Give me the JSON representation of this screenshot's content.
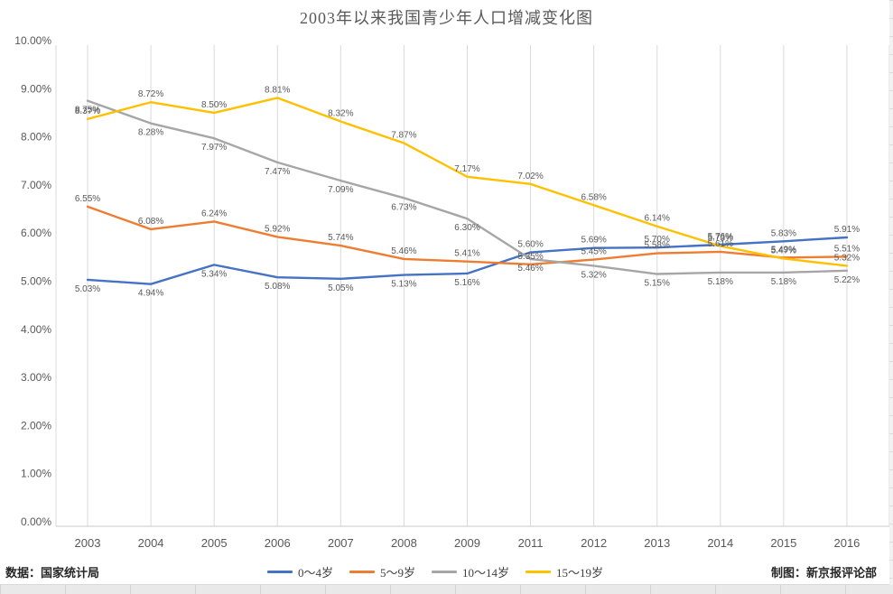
{
  "title": "2003年以来我国青少年人口增减变化图",
  "footer": {
    "source_label": "数据：国家统计局",
    "credit_label": "制图：新京报评论部"
  },
  "chart_data": {
    "type": "line",
    "title": "2003年以来我国青少年人口增减变化图",
    "categories": [
      "2003",
      "2004",
      "2005",
      "2006",
      "2007",
      "2008",
      "2009",
      "2011",
      "2012",
      "2013",
      "2014",
      "2015",
      "2016"
    ],
    "series": [
      {
        "name": "0～4岁",
        "color": "#4472c4",
        "values": [
          5.03,
          4.94,
          5.34,
          5.08,
          5.05,
          5.13,
          5.16,
          5.6,
          5.69,
          5.7,
          5.76,
          5.83,
          5.91
        ]
      },
      {
        "name": "5～9岁",
        "color": "#ed7d31",
        "values": [
          6.55,
          6.08,
          6.24,
          5.92,
          5.74,
          5.46,
          5.41,
          5.35,
          5.45,
          5.58,
          5.61,
          5.49,
          5.51
        ]
      },
      {
        "name": "10～14岁",
        "color": "#a6a6a6",
        "values": [
          8.75,
          8.28,
          7.97,
          7.47,
          7.09,
          6.73,
          6.3,
          5.46,
          5.32,
          5.15,
          5.18,
          5.18,
          5.22
        ]
      },
      {
        "name": "15～19岁",
        "color": "#ffc000",
        "values": [
          8.37,
          8.72,
          8.5,
          8.81,
          8.32,
          7.87,
          7.17,
          7.02,
          6.58,
          6.14,
          5.73,
          5.47,
          5.32
        ]
      }
    ],
    "xlabel": "",
    "ylabel": "",
    "ylim": [
      0,
      10
    ],
    "ytick_step": 1,
    "ytick_labels": [
      "0.00%",
      "1.00%",
      "2.00%",
      "3.00%",
      "4.00%",
      "5.00%",
      "6.00%",
      "7.00%",
      "8.00%",
      "9.00%",
      "10.00%"
    ],
    "grid": "vertical-only",
    "legend_position": "bottom",
    "data_labels": "all-points, two-decimal percent",
    "colors": {
      "grid": "#d9d9d9",
      "axis": "#c9c9c9",
      "tick_text": "#595959",
      "data_label_text": "#595959",
      "title_text": "#595959"
    }
  }
}
